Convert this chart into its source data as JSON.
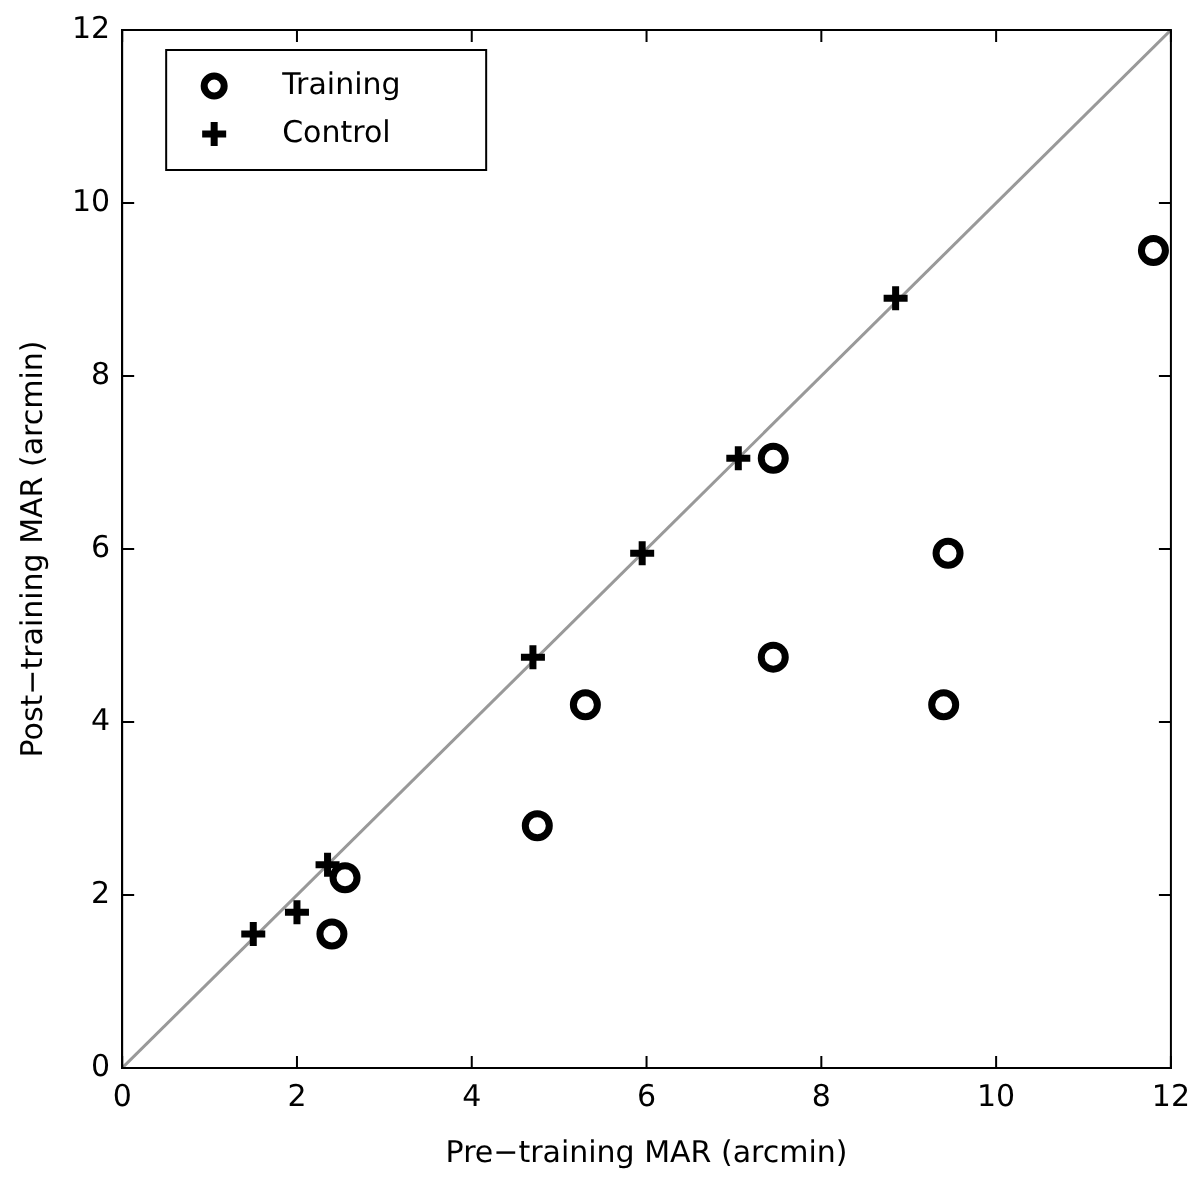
{
  "chart_data": {
    "type": "scatter",
    "xlabel": "Pre−training MAR (arcmin)",
    "ylabel": "Post−training MAR (arcmin)",
    "xlim": [
      0,
      12
    ],
    "ylim": [
      0,
      12
    ],
    "xticks": [
      0,
      2,
      4,
      6,
      8,
      10,
      12
    ],
    "yticks": [
      0,
      2,
      4,
      6,
      8,
      10,
      12
    ],
    "grid": false,
    "legend": "top left",
    "series": [
      {
        "name": "Training",
        "color": "#000000",
        "marker": "circle",
        "x": [
          2.4,
          2.55,
          4.75,
          5.3,
          7.45,
          7.45,
          9.45,
          9.4,
          11.8
        ],
        "values": [
          1.55,
          2.2,
          2.8,
          4.2,
          7.05,
          4.75,
          5.95,
          4.2,
          9.45
        ]
      },
      {
        "name": "Control",
        "color": "#000000",
        "marker": "cross",
        "x": [
          1.5,
          2.0,
          2.35,
          4.7,
          5.95,
          7.05,
          8.85
        ],
        "values": [
          1.55,
          1.8,
          2.35,
          4.75,
          5.95,
          7.05,
          8.9
        ]
      },
      {
        "type": "line",
        "color": "#999999",
        "marker": "none",
        "x": [
          0,
          12
        ],
        "values": [
          0,
          12
        ]
      }
    ]
  }
}
